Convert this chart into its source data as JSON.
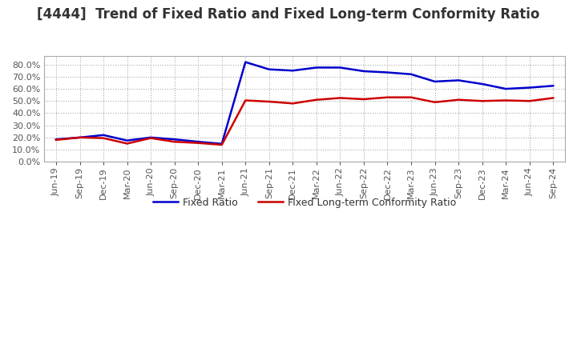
{
  "title": "[4444]  Trend of Fixed Ratio and Fixed Long-term Conformity Ratio",
  "x_labels": [
    "Jun-19",
    "Sep-19",
    "Dec-19",
    "Mar-20",
    "Jun-20",
    "Sep-20",
    "Dec-20",
    "Mar-21",
    "Jun-21",
    "Sep-21",
    "Dec-21",
    "Mar-22",
    "Jun-22",
    "Sep-22",
    "Dec-22",
    "Mar-23",
    "Jun-23",
    "Sep-23",
    "Dec-23",
    "Mar-24",
    "Jun-24",
    "Sep-24"
  ],
  "fixed_ratio": [
    0.185,
    0.2,
    0.22,
    0.175,
    0.2,
    0.185,
    0.165,
    0.148,
    0.82,
    0.76,
    0.75,
    0.775,
    0.775,
    0.745,
    0.735,
    0.72,
    0.66,
    0.67,
    0.64,
    0.6,
    0.61,
    0.625
  ],
  "fixed_lt_ratio": [
    0.18,
    0.2,
    0.195,
    0.15,
    0.195,
    0.165,
    0.155,
    0.14,
    0.505,
    0.495,
    0.48,
    0.51,
    0.525,
    0.515,
    0.53,
    0.53,
    0.49,
    0.51,
    0.5,
    0.505,
    0.5,
    0.525
  ],
  "fixed_ratio_color": "#0000cc",
  "fixed_lt_ratio_color": "#cc0000",
  "bg_color": "#ffffff",
  "grid_color": "#aaaaaa",
  "ylim": [
    0.0,
    0.87
  ],
  "yticks": [
    0.0,
    0.1,
    0.2,
    0.3,
    0.4,
    0.5,
    0.6,
    0.7,
    0.8
  ],
  "title_color": "#333333",
  "title_fontsize": 12,
  "legend_fixed_ratio": "Fixed Ratio",
  "legend_fixed_lt_ratio": "Fixed Long-term Conformity Ratio"
}
